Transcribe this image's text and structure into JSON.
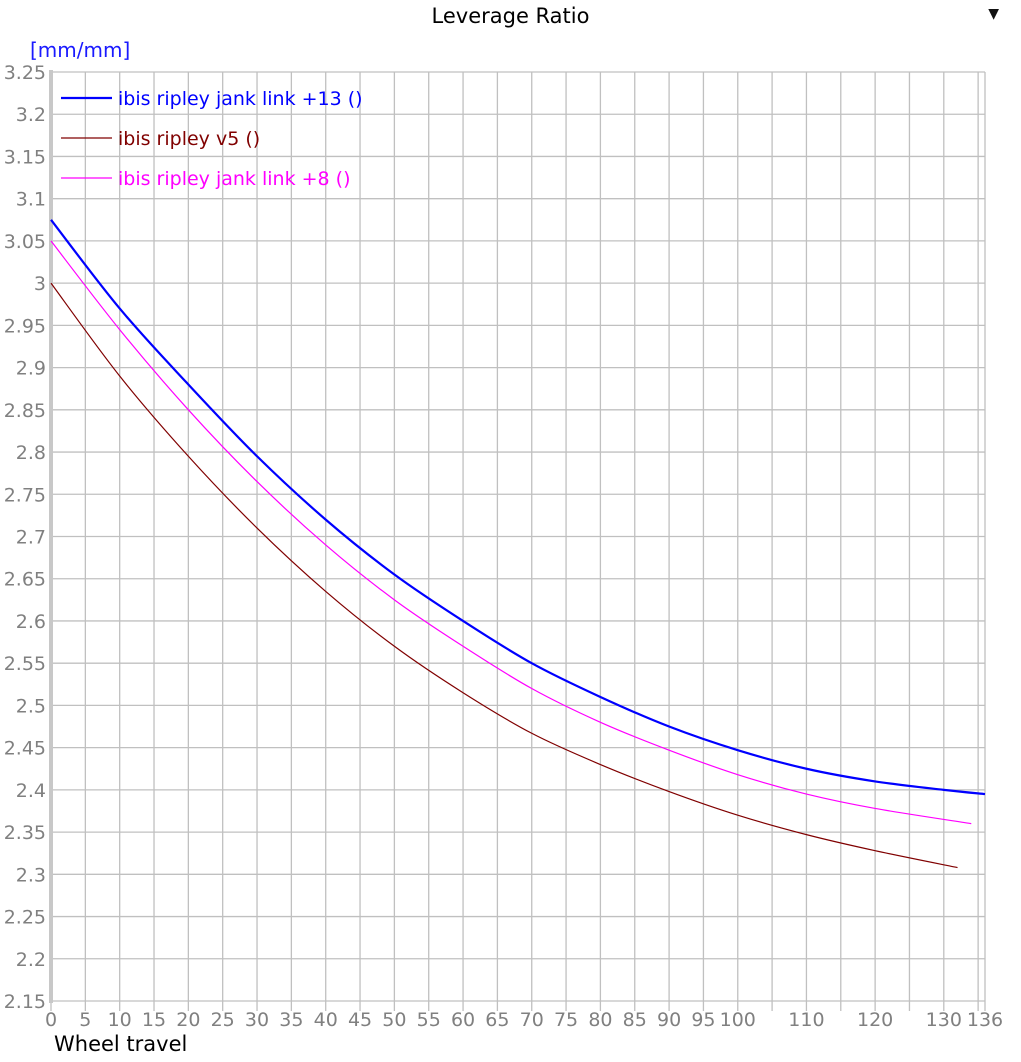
{
  "header": {
    "title": "Leverage Ratio",
    "dropdown_icon": "triangle-down-icon"
  },
  "axes": {
    "y_unit": "[mm/mm]",
    "x_label": "Wheel travel"
  },
  "chart_data": {
    "type": "line",
    "title": "Leverage Ratio",
    "xlabel": "Wheel travel",
    "ylabel": "[mm/mm]",
    "xlim": [
      0,
      136
    ],
    "ylim": [
      2.15,
      3.25
    ],
    "grid": true,
    "legend_position": "top-left",
    "x_ticks": [
      0,
      5,
      10,
      15,
      20,
      25,
      30,
      35,
      40,
      45,
      50,
      55,
      60,
      65,
      70,
      75,
      80,
      85,
      90,
      95,
      100,
      110,
      120,
      130,
      136
    ],
    "x_gridlines": [
      0,
      5,
      10,
      15,
      20,
      25,
      30,
      35,
      40,
      45,
      50,
      55,
      60,
      65,
      70,
      75,
      80,
      85,
      90,
      95,
      100,
      105,
      110,
      115,
      120,
      125,
      130,
      135,
      136
    ],
    "y_ticks": [
      2.15,
      2.2,
      2.25,
      2.3,
      2.35,
      2.4,
      2.45,
      2.5,
      2.55,
      2.6,
      2.65,
      2.7,
      2.75,
      2.8,
      2.85,
      2.9,
      2.95,
      3,
      3.05,
      3.1,
      3.15,
      3.2,
      3.25
    ],
    "y_tick_labels": [
      "2.15",
      "2.2",
      "2.25",
      "2.3",
      "2.35",
      "2.4",
      "2.45",
      "2.5",
      "2.55",
      "2.6",
      "2.65",
      "2.7",
      "2.75",
      "2.8",
      "2.85",
      "2.9",
      "2.95",
      "3",
      "3.05",
      "3.1",
      "3.15",
      "3.2",
      "3.25"
    ],
    "series": [
      {
        "name": "ibis ripley jank link +13 ()",
        "color": "#0000ff",
        "width": 2.2,
        "x": [
          0,
          10,
          20,
          30,
          40,
          50,
          60,
          70,
          80,
          90,
          100,
          110,
          120,
          130,
          136
        ],
        "values": [
          3.075,
          2.97,
          2.88,
          2.795,
          2.72,
          2.655,
          2.6,
          2.55,
          2.51,
          2.475,
          2.447,
          2.425,
          2.41,
          2.4,
          2.395
        ]
      },
      {
        "name": "ibis ripley v5 ()",
        "color": "#800000",
        "width": 1.2,
        "x": [
          0,
          10,
          20,
          30,
          40,
          50,
          60,
          70,
          80,
          90,
          100,
          110,
          120,
          132
        ],
        "values": [
          3.0,
          2.89,
          2.795,
          2.71,
          2.635,
          2.57,
          2.515,
          2.467,
          2.43,
          2.398,
          2.37,
          2.347,
          2.328,
          2.308
        ]
      },
      {
        "name": "ibis ripley jank link +8 ()",
        "color": "#ff00ff",
        "width": 1.2,
        "x": [
          0,
          10,
          20,
          30,
          40,
          50,
          60,
          70,
          80,
          90,
          100,
          110,
          120,
          134
        ],
        "values": [
          3.05,
          2.945,
          2.85,
          2.765,
          2.69,
          2.625,
          2.57,
          2.52,
          2.48,
          2.447,
          2.418,
          2.395,
          2.378,
          2.36
        ]
      }
    ]
  }
}
